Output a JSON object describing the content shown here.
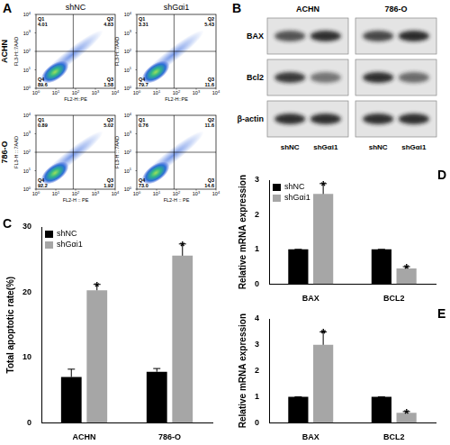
{
  "panel_labels": [
    "A",
    "B",
    "C",
    "D",
    "E"
  ],
  "flow_cytometry": {
    "rows": [
      "ACHN",
      "786-O"
    ],
    "columns": [
      "shNC",
      "shGαi1"
    ],
    "tick_base": "10",
    "tick_exponents": [
      "0",
      "1",
      "2",
      "3",
      "4"
    ],
    "plots": [
      [
        {
          "x_label": "FL2-H::PE",
          "y_label": "FL3-H::7AAD",
          "quadrants": [
            {
              "name": "Q1",
              "value": "4.01"
            },
            {
              "name": "Q2",
              "value": "4.83"
            },
            {
              "name": "Q3",
              "value": "1.58"
            },
            {
              "name": "Q4",
              "value": "89.6"
            }
          ]
        },
        {
          "x_label": "FL2-H::PE",
          "y_label": "FL3-H::7AAD",
          "quadrants": [
            {
              "name": "Q1",
              "value": "3.31"
            },
            {
              "name": "Q2",
              "value": "5.43"
            },
            {
              "name": "Q3",
              "value": "11.6"
            },
            {
              "name": "Q4",
              "value": "79.7"
            }
          ]
        }
      ],
      [
        {
          "x_label": "FL2-H :: PE",
          "y_label": "FL3-H :: 7AAD",
          "quadrants": [
            {
              "name": "Q1",
              "value": "0.89"
            },
            {
              "name": "Q2",
              "value": "5.02"
            },
            {
              "name": "Q3",
              "value": "1.92"
            },
            {
              "name": "Q4",
              "value": "92.2"
            }
          ]
        },
        {
          "x_label": "FL2-H :: PE",
          "y_label": "FL3-H :: 7AAD",
          "quadrants": [
            {
              "name": "Q1",
              "value": "0.76"
            },
            {
              "name": "Q2",
              "value": "11.6"
            },
            {
              "name": "Q3",
              "value": "14.6"
            },
            {
              "name": "Q4",
              "value": "73.0"
            }
          ]
        }
      ]
    ]
  },
  "western_blot": {
    "cell_lines": [
      "ACHN",
      "786-O"
    ],
    "proteins": [
      "BAX",
      "Bcl2",
      "β-actin"
    ],
    "lanes": [
      "shNC",
      "shGαi1"
    ]
  },
  "chart_data": [
    {
      "type": "bar",
      "y_label": "Total apoptotic rate(%)",
      "categories": [
        "ACHN",
        "786-O"
      ],
      "series": [
        {
          "name": "shNC",
          "color": "#000000",
          "values": [
            7.0,
            7.8
          ],
          "errors": [
            1.2,
            0.5
          ]
        },
        {
          "name": "shGαi1",
          "color": "#a6a6a6",
          "values": [
            20.3,
            25.6
          ],
          "errors": [
            0.9,
            1.8
          ]
        }
      ],
      "ylim": [
        0,
        30
      ],
      "yticks": [
        0,
        10,
        20,
        30
      ],
      "grid": false,
      "legend": "top-left",
      "annotations": [
        {
          "text": "*",
          "series": "shGαi1",
          "category": "ACHN"
        },
        {
          "text": "*",
          "series": "shGαi1",
          "category": "786-O"
        }
      ]
    },
    {
      "type": "bar",
      "y_label": "Relative mRNA expression",
      "categories": [
        "BAX",
        "BCL2"
      ],
      "series": [
        {
          "name": "shNC",
          "color": "#000000",
          "values": [
            1.0,
            1.0
          ],
          "errors": [
            0,
            0
          ]
        },
        {
          "name": "shGαi1",
          "color": "#a6a6a6",
          "values": [
            2.6,
            0.45
          ],
          "errors": [
            0.3,
            0.05
          ]
        }
      ],
      "ylim": [
        0,
        3
      ],
      "yticks": [
        0,
        1,
        2,
        3
      ],
      "grid": false,
      "legend": "top-left",
      "annotations": [
        {
          "text": "*",
          "series": "shGαi1",
          "category": "BAX"
        },
        {
          "text": "*",
          "series": "shGαi1",
          "category": "BCL2"
        }
      ]
    },
    {
      "type": "bar",
      "y_label": "Relative mRNA expression",
      "categories": [
        "BAX",
        "BCL2"
      ],
      "series": [
        {
          "name": "shNC",
          "color": "#000000",
          "values": [
            1.0,
            1.0
          ],
          "errors": [
            0,
            0
          ]
        },
        {
          "name": "shGαi1",
          "color": "#a6a6a6",
          "values": [
            3.0,
            0.38
          ],
          "errors": [
            0.5,
            0.05
          ]
        }
      ],
      "ylim": [
        0,
        4
      ],
      "yticks": [
        0,
        1,
        2,
        3,
        4
      ],
      "grid": false,
      "annotations": [
        {
          "text": "*",
          "series": "shGαi1",
          "category": "BAX"
        },
        {
          "text": "*",
          "series": "shGαi1",
          "category": "BCL2"
        }
      ]
    }
  ]
}
